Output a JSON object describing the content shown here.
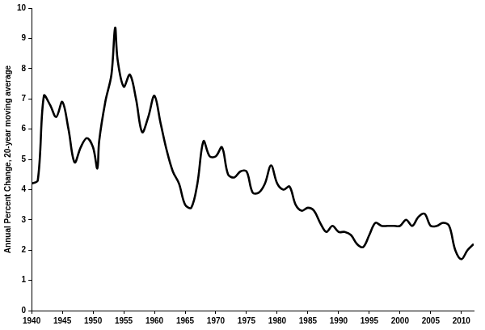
{
  "chart_data": {
    "type": "line",
    "y_label": "Annual Percent Change, 20-year moving average",
    "x": [
      1940,
      1941,
      1942,
      1943,
      1944,
      1945,
      1946,
      1947,
      1948,
      1949,
      1950,
      1950.7,
      1951,
      1952,
      1953,
      1953.6,
      1954,
      1955,
      1956,
      1957,
      1958,
      1959,
      1960,
      1961,
      1962,
      1963,
      1964,
      1965,
      1966,
      1967,
      1968,
      1969,
      1970,
      1971,
      1972,
      1973,
      1974,
      1975,
      1976,
      1977,
      1978,
      1979,
      1980,
      1981,
      1982,
      1983,
      1984,
      1985,
      1986,
      1987,
      1988,
      1989,
      1990,
      1991,
      1992,
      1993,
      1994,
      1995,
      1996,
      1997,
      1998,
      1999,
      2000,
      2001,
      2002,
      2003,
      2004,
      2005,
      2006,
      2007,
      2008,
      2009,
      2010,
      2011,
      2012
    ],
    "values": [
      4.2,
      4.3,
      7.1,
      6.8,
      6.4,
      6.9,
      6.0,
      4.9,
      5.4,
      5.7,
      5.4,
      4.7,
      5.6,
      6.9,
      7.8,
      9.35,
      8.3,
      7.4,
      7.8,
      7.0,
      5.9,
      6.4,
      7.1,
      6.2,
      5.3,
      4.6,
      4.2,
      3.5,
      3.4,
      4.2,
      5.6,
      5.1,
      5.1,
      5.4,
      4.5,
      4.4,
      4.6,
      4.6,
      3.9,
      3.9,
      4.2,
      4.8,
      4.2,
      4.0,
      4.1,
      3.5,
      3.3,
      3.4,
      3.3,
      2.9,
      2.6,
      2.8,
      2.6,
      2.6,
      2.5,
      2.2,
      2.1,
      2.5,
      2.9,
      2.8,
      2.8,
      2.8,
      2.8,
      3.0,
      2.8,
      3.1,
      3.2,
      2.8,
      2.8,
      2.9,
      2.8,
      2.0,
      1.7,
      2.0,
      2.2
    ],
    "color": "#000000",
    "xlim": [
      1940,
      2012
    ],
    "xticks": [
      1940,
      1945,
      1950,
      1955,
      1960,
      1965,
      1970,
      1975,
      1980,
      1985,
      1990,
      1995,
      2000,
      2005,
      2010
    ],
    "ylim": [
      0,
      10
    ],
    "yticks": [
      0,
      1,
      2,
      3,
      4,
      5,
      6,
      7,
      8,
      9,
      10
    ],
    "grid": false
  }
}
